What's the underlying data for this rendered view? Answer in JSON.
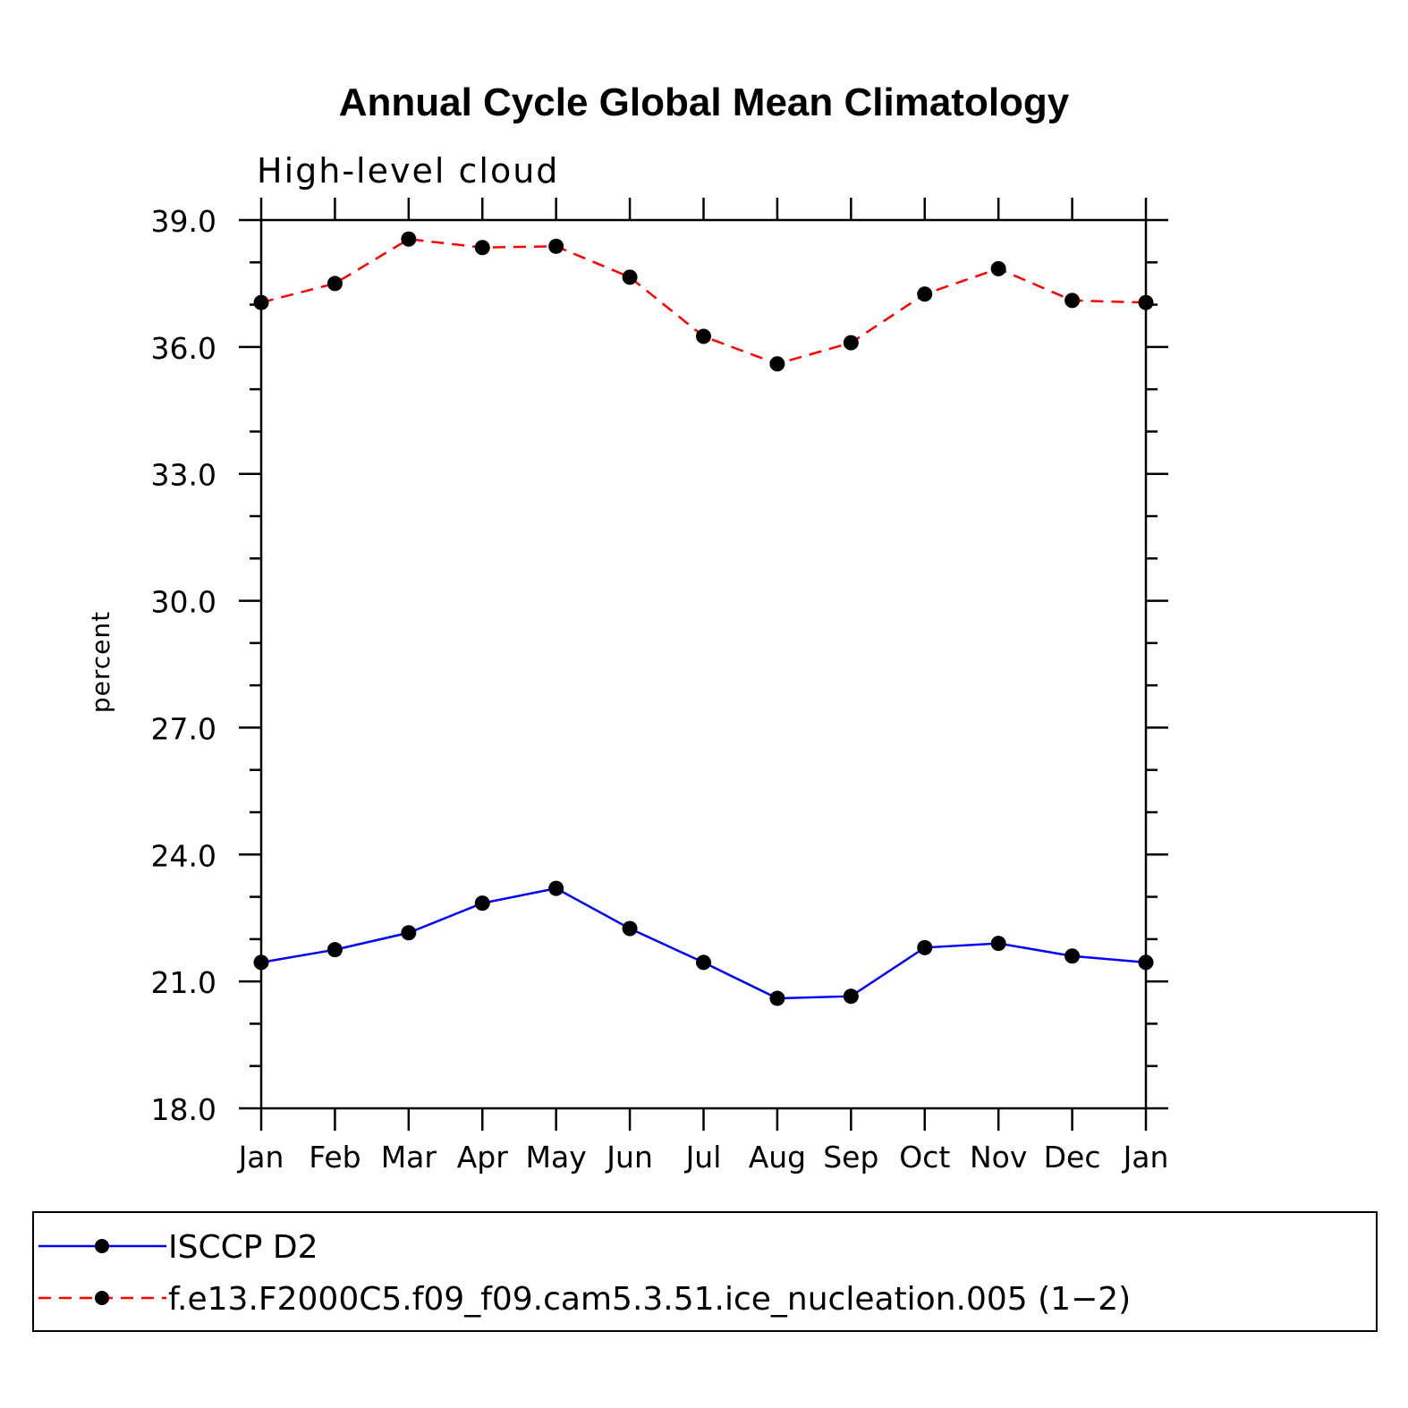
{
  "chart_data": {
    "type": "line",
    "title": "Annual Cycle Global Mean Climatology",
    "subtitle": "High-level cloud",
    "xlabel": "",
    "ylabel": "percent",
    "categories": [
      "Jan",
      "Feb",
      "Mar",
      "Apr",
      "May",
      "Jun",
      "Jul",
      "Aug",
      "Sep",
      "Oct",
      "Nov",
      "Dec",
      "Jan"
    ],
    "ylim": [
      18,
      39
    ],
    "yticks": [
      18,
      21,
      24,
      27,
      30,
      33,
      36,
      39
    ],
    "ytick_labels": [
      "18.0",
      "21.0",
      "24.0",
      "27.0",
      "30.0",
      "33.0",
      "36.0",
      "39.0"
    ],
    "yminor_step": 1,
    "grid": false,
    "legend_position": "bottom",
    "series": [
      {
        "name": "ISCCP D2",
        "color": "#0000ff",
        "linestyle": "solid",
        "marker": "circle",
        "values": [
          21.45,
          21.75,
          22.15,
          22.85,
          23.2,
          22.25,
          21.45,
          20.6,
          20.65,
          21.8,
          21.9,
          21.6,
          21.45
        ]
      },
      {
        "name": "f.e13.F2000C5.f09_f09.cam5.3.51.ice_nucleation.005 (1−2)",
        "color": "#ff0000",
        "linestyle": "dashed",
        "marker": "circle",
        "values": [
          37.05,
          37.5,
          38.55,
          38.35,
          38.38,
          37.65,
          36.25,
          35.6,
          36.1,
          37.25,
          37.85,
          37.1,
          37.05
        ]
      }
    ]
  }
}
